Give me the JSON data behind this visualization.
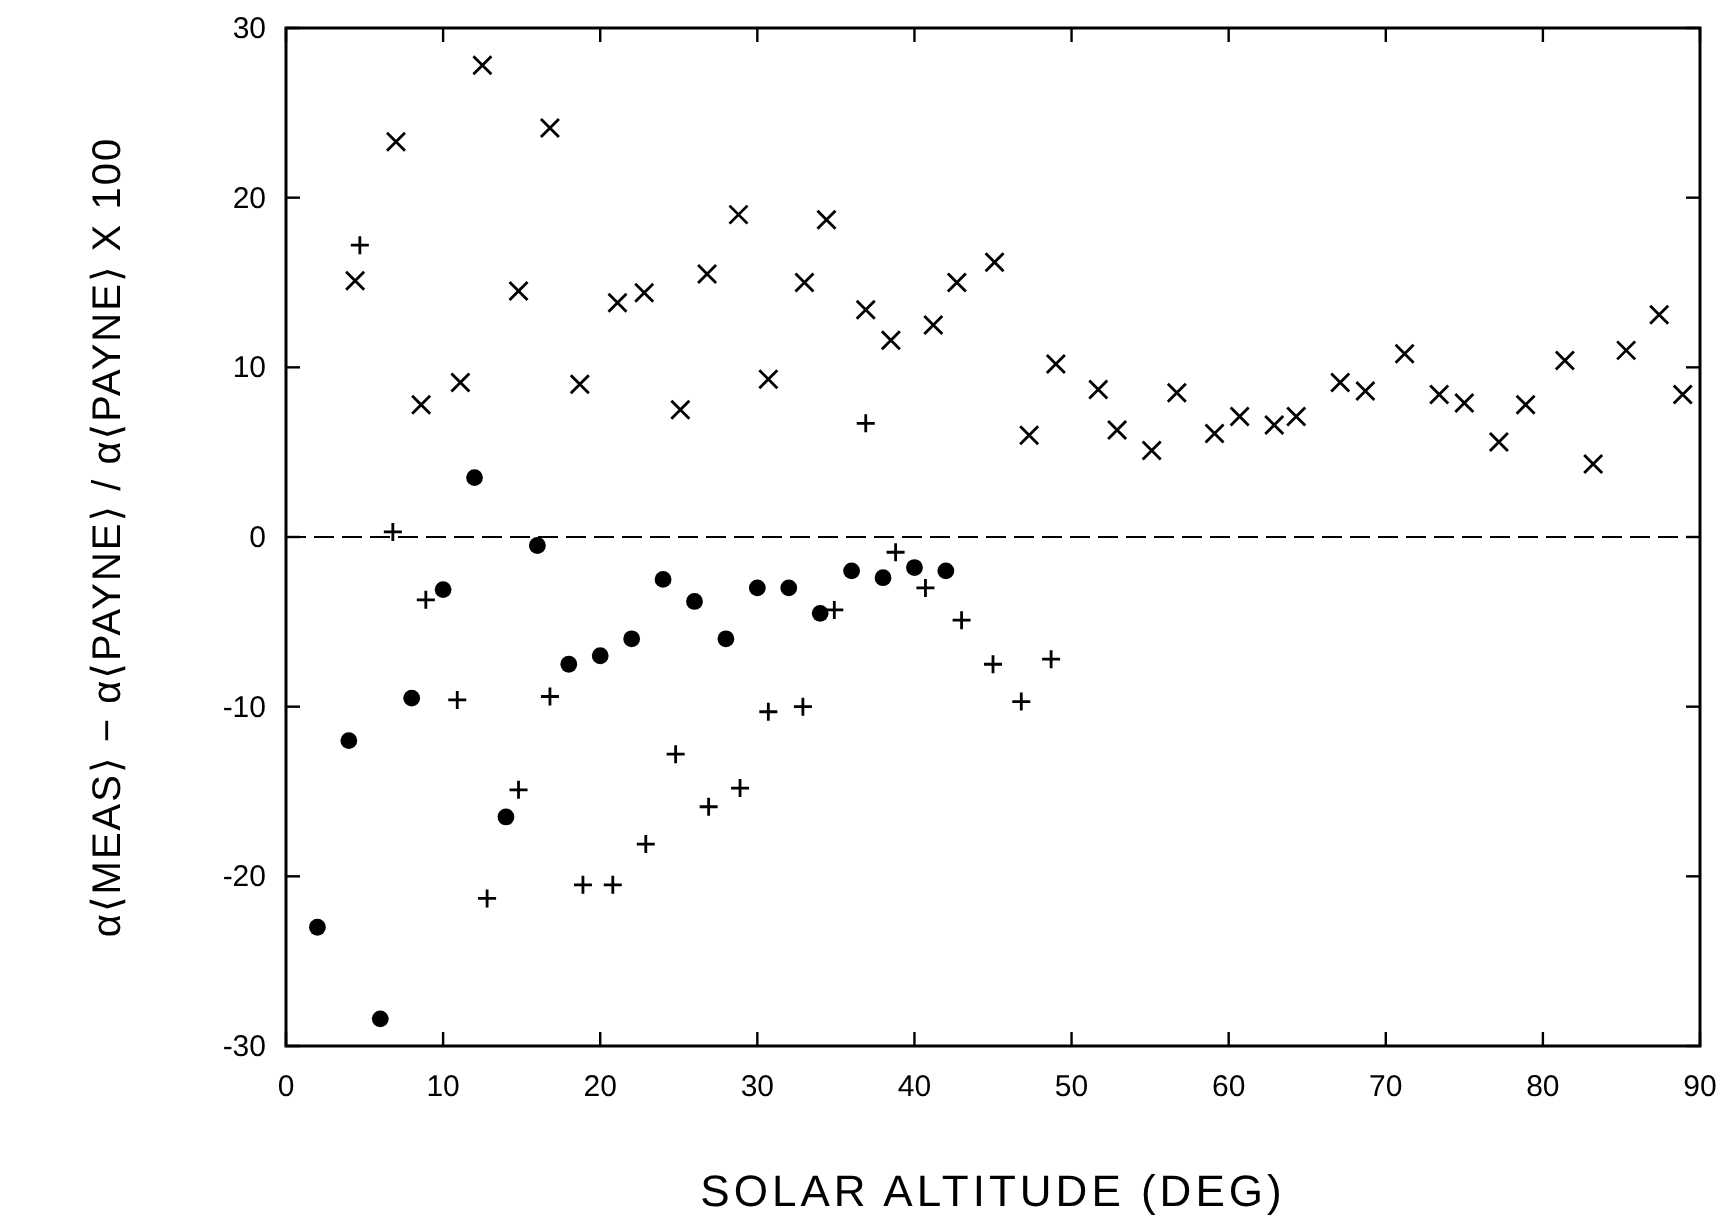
{
  "chart_data": {
    "type": "scatter",
    "xlabel": "SOLAR ALTITUDE (DEG)",
    "ylabel": "α⟨MEAS⟩ − α⟨PAYNE⟩ / α⟨PAYNE⟩ X 100",
    "xlim": [
      0,
      90
    ],
    "xticks": [
      0,
      10,
      20,
      30,
      40,
      50,
      60,
      70,
      80,
      90
    ],
    "ylim": [
      -30,
      30
    ],
    "yticks": [
      -30,
      -20,
      -10,
      0,
      10,
      20,
      30
    ],
    "grid": false,
    "ref_lines": [
      {
        "axis": "y",
        "value": 0,
        "line_style": "dashed",
        "color": "#000000"
      }
    ],
    "series": [
      {
        "color": "#000000",
        "marker": "circle",
        "x": [
          2,
          4,
          6,
          8,
          10,
          12,
          14,
          16,
          18,
          20,
          22,
          24,
          26,
          28,
          30,
          32,
          34,
          36,
          38,
          40,
          42
        ],
        "values": [
          -23,
          -12,
          -28.4,
          -9.5,
          -3.1,
          3.5,
          -16.5,
          -0.5,
          -7.5,
          -7,
          -6,
          -2.5,
          -3.8,
          -6,
          -3,
          -3,
          -4.5,
          -2,
          -2.4,
          -1.8,
          -2
        ]
      },
      {
        "color": "#000000",
        "marker": "plus",
        "x": [
          4.7,
          6.8,
          8.9,
          10.9,
          12.8,
          14.8,
          16.8,
          18.9,
          20.8,
          22.9,
          24.8,
          26.9,
          28.9,
          30.7,
          32.9,
          34.9,
          36.9,
          38.8,
          40.7,
          43,
          45,
          46.8,
          48.7
        ],
        "values": [
          17.2,
          0.3,
          -3.7,
          -9.6,
          -21.3,
          -14.9,
          -9.4,
          -20.5,
          -20.5,
          -18.1,
          -12.8,
          -15.9,
          -14.8,
          -10.3,
          -10,
          -4.3,
          6.7,
          -0.9,
          -3,
          -4.9,
          -7.5,
          -9.7,
          -7.2
        ]
      },
      {
        "color": "#000000",
        "marker": "cross",
        "x": [
          4.4,
          7,
          8.6,
          11.1,
          12.5,
          14.8,
          16.8,
          18.7,
          21.1,
          22.8,
          25.1,
          26.8,
          28.8,
          30.7,
          33,
          34.4,
          36.9,
          38.5,
          41.2,
          42.7,
          45.1,
          47.3,
          49,
          51.7,
          52.9,
          55.1,
          56.7,
          59.1,
          60.7,
          62.9,
          64.3,
          67.1,
          68.7,
          71.2,
          73.4,
          75,
          77.2,
          78.9,
          81.4,
          83.2,
          85.3,
          87.4,
          88.9
        ],
        "values": [
          15.1,
          23.3,
          7.8,
          9.1,
          27.8,
          14.5,
          24.1,
          9,
          13.8,
          14.4,
          7.5,
          15.5,
          19,
          9.3,
          15,
          18.7,
          13.4,
          11.6,
          12.5,
          15,
          16.2,
          6,
          10.2,
          8.7,
          6.3,
          5.1,
          8.5,
          6.1,
          7.1,
          6.6,
          7.1,
          9.1,
          8.6,
          10.8,
          8.4,
          7.9,
          5.6,
          7.8,
          10.4,
          4.3,
          11,
          13.1,
          8.4
        ]
      }
    ]
  }
}
